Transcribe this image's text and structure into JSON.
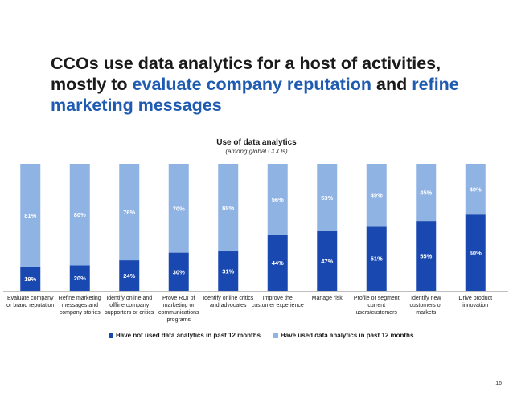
{
  "headline": {
    "part1": "CCOs use data analytics for a host of activities, mostly to ",
    "highlight1": "evaluate company reputation",
    "part2": " and ",
    "highlight2": "refine marketing messages"
  },
  "page_number": "16",
  "colors": {
    "accent_text": "#1f5bb0",
    "series_not_used": "#1848b0",
    "series_used": "#8fb3e3"
  },
  "chart_data": {
    "type": "bar",
    "stacked": true,
    "title": "Use of data analytics",
    "subtitle": "(among global CCOs)",
    "categories": [
      "Evaluate company or brand reputation",
      "Refine marketing messages and company stories",
      "Identify online and offline company supporters or critics",
      "Prove ROI of marketing or communications programs",
      "Identify online critics and advocates",
      "Improve the customer experience",
      "Manage risk",
      "Profile or segment current users/customers",
      "Identify new customers or markets",
      "Drive product innovation"
    ],
    "category_label_lines": [
      [
        "Evaluate company",
        "or brand reputation"
      ],
      [
        "Refine marketing",
        "messages and",
        "company stories"
      ],
      [
        "Identify online and",
        "offline company",
        "supporters or critics"
      ],
      [
        "Prove ROI of",
        "marketing or",
        "communications",
        "programs"
      ],
      [
        "Identify online critics",
        "and advocates"
      ],
      [
        "Improve the",
        "customer experience"
      ],
      [
        "Manage risk"
      ],
      [
        "Profile or segment",
        "current",
        "users/customers"
      ],
      [
        "Identify new",
        "customers or",
        "markets"
      ],
      [
        "Drive product",
        "innovation"
      ]
    ],
    "series": [
      {
        "name": "Have not used data analytics in past 12 months",
        "values": [
          19,
          20,
          24,
          30,
          31,
          44,
          47,
          51,
          55,
          60
        ],
        "labels": [
          "19%",
          "20%",
          "24%",
          "30%",
          "31%",
          "44%",
          "47%",
          "51%",
          "55%",
          "60%"
        ]
      },
      {
        "name": "Have used data analytics in past 12 months",
        "values": [
          81,
          80,
          76,
          70,
          69,
          56,
          53,
          49,
          45,
          40
        ],
        "labels": [
          "81%",
          "80%",
          "76%",
          "70%",
          "69%",
          "56%",
          "53%",
          "49%",
          "45%",
          "40%"
        ]
      }
    ],
    "ylim": [
      0,
      100
    ],
    "legend_position": "bottom",
    "grid": false
  }
}
